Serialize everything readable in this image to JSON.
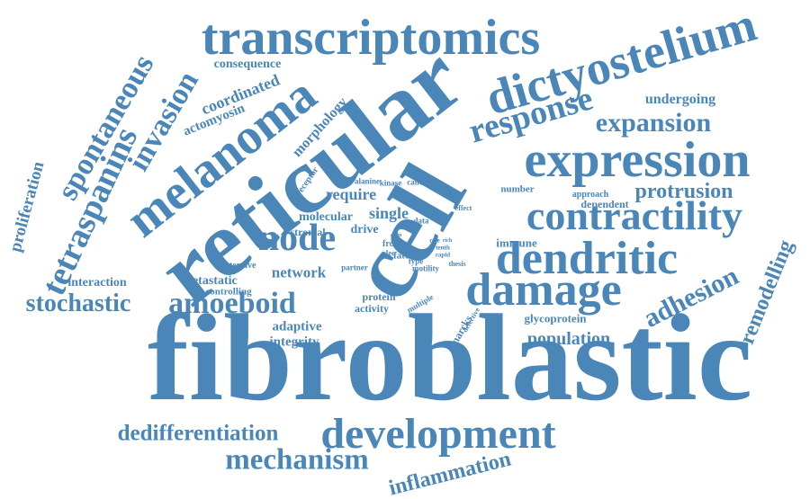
{
  "colors": {
    "word": "#4a86b8",
    "background": "#ffffff"
  },
  "words": [
    {
      "text": "fibroblastic"
    },
    {
      "text": "reticular"
    },
    {
      "text": "cell"
    },
    {
      "text": "transcriptomics"
    },
    {
      "text": "dictyostelium"
    },
    {
      "text": "expression"
    },
    {
      "text": "melanoma"
    },
    {
      "text": "damage"
    },
    {
      "text": "dendritic"
    },
    {
      "text": "contractility"
    },
    {
      "text": "development"
    },
    {
      "text": "response"
    },
    {
      "text": "node"
    },
    {
      "text": "amoeboid"
    },
    {
      "text": "mechanism"
    },
    {
      "text": "tetraspanins"
    },
    {
      "text": "spontaneous"
    },
    {
      "text": "invasion"
    },
    {
      "text": "expansion"
    },
    {
      "text": "adhesion"
    },
    {
      "text": "protrusion"
    },
    {
      "text": "stochastic"
    },
    {
      "text": "dedifferentiation"
    },
    {
      "text": "inflammation"
    },
    {
      "text": "remodelling"
    },
    {
      "text": "population"
    },
    {
      "text": "proliferation"
    },
    {
      "text": "coordinated"
    },
    {
      "text": "morphology"
    },
    {
      "text": "actomyosin"
    },
    {
      "text": "consequence"
    },
    {
      "text": "undergoing"
    },
    {
      "text": "require"
    },
    {
      "text": "single"
    },
    {
      "text": "molecular"
    },
    {
      "text": "drive"
    },
    {
      "text": "stromal"
    },
    {
      "text": "network"
    },
    {
      "text": "metastatic"
    },
    {
      "text": "adaptive"
    },
    {
      "text": "integrity"
    },
    {
      "text": "interaction"
    },
    {
      "text": "immune"
    },
    {
      "text": "dependent"
    },
    {
      "text": "number"
    },
    {
      "text": "approach"
    },
    {
      "text": "glycoprotein"
    },
    {
      "text": "marcks"
    },
    {
      "text": "controlling"
    },
    {
      "text": "extensive"
    },
    {
      "text": "protein"
    },
    {
      "text": "activity"
    },
    {
      "text": "receptor"
    },
    {
      "text": "alanine"
    },
    {
      "text": "kinase"
    },
    {
      "text": "cancer"
    },
    {
      "text": "effect"
    },
    {
      "text": "data"
    },
    {
      "text": "fate"
    },
    {
      "text": "type"
    },
    {
      "text": "motility"
    },
    {
      "text": "frcs"
    },
    {
      "text": "clec"
    },
    {
      "text": "partner"
    },
    {
      "text": "multiple"
    },
    {
      "text": "defective"
    },
    {
      "text": "thesis"
    },
    {
      "text": "rapid"
    },
    {
      "text": "tenth"
    },
    {
      "text": "sperm"
    },
    {
      "text": "actin"
    },
    {
      "text": "role"
    },
    {
      "text": "rich"
    }
  ]
}
